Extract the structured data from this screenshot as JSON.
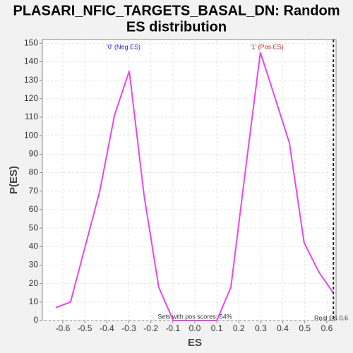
{
  "chart_data": {
    "type": "line",
    "title": [
      "PLASARI_NFIC_TARGETS_BASAL_DN: Random",
      "ES distribution"
    ],
    "x_label": "ES",
    "y_label": "P(ES)",
    "x": [
      -0.632,
      -0.565,
      -0.432,
      -0.365,
      -0.298,
      -0.231,
      -0.164,
      -0.098,
      -0.032,
      0.034,
      0.1,
      0.164,
      0.231,
      0.298,
      0.366,
      0.43,
      0.497,
      0.565,
      0.629
    ],
    "series": [
      {
        "color": "#ee44ee",
        "values": [
          7,
          10,
          70,
          111,
          135,
          68,
          18,
          0,
          0,
          0,
          0,
          18,
          82,
          145,
          120,
          96,
          42,
          26,
          15
        ]
      }
    ],
    "xlim": [
      -0.693,
      0.642
    ],
    "ylim": [
      0,
      152
    ],
    "xticks": [
      -0.6,
      -0.5,
      -0.4,
      -0.3,
      -0.2,
      -0.1,
      {
        "value": 0,
        "label": "0.0"
      },
      0.1,
      0.2,
      0.3,
      0.4,
      0.5,
      0.6
    ],
    "yticks": [
      0,
      10,
      20,
      30,
      40,
      50,
      60,
      70,
      80,
      90,
      100,
      110,
      120,
      130,
      140,
      150
    ],
    "grid": true,
    "neg_label": "'0' (Neg ES)",
    "pos_label": "'1' (Pos ES)",
    "pos_scores_label": "Sets with pos scores: 54%",
    "real_es": 0.63,
    "real_es_label": "Real ES 0.6"
  }
}
